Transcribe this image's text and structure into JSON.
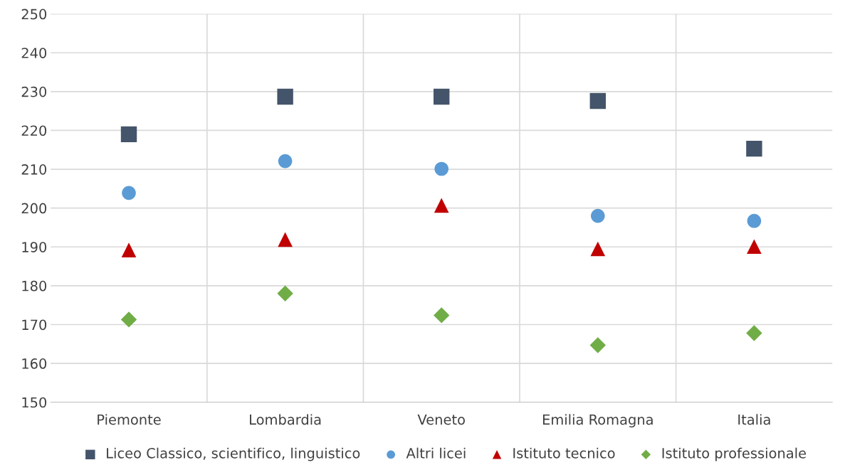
{
  "chart_data": {
    "type": "scatter",
    "categories": [
      "Piemonte",
      "Lombardia",
      "Veneto",
      "Emilia Romagna",
      "Italia"
    ],
    "series": [
      {
        "name": "Liceo Classico, scientifico, linguistico",
        "color": "#44546a",
        "marker": "square",
        "values": [
          219,
          228.7,
          228.7,
          227.6,
          215.3
        ]
      },
      {
        "name": "Altri licei",
        "color": "#5b9bd5",
        "marker": "circle",
        "values": [
          203.9,
          212.1,
          210.1,
          198,
          196.7
        ]
      },
      {
        "name": "Istituto tecnico",
        "color": "#c00000",
        "marker": "triangle",
        "values": [
          189.2,
          191.9,
          200.7,
          189.5,
          190.1
        ]
      },
      {
        "name": "Istituto professionale",
        "color": "#70ad47",
        "marker": "diamond",
        "values": [
          171.3,
          178,
          172.4,
          164.7,
          167.8
        ]
      }
    ],
    "ylim": [
      150,
      250
    ],
    "yticks": [
      150,
      160,
      170,
      180,
      190,
      200,
      210,
      220,
      230,
      240,
      250
    ],
    "grid": true,
    "legend": "bottom"
  }
}
